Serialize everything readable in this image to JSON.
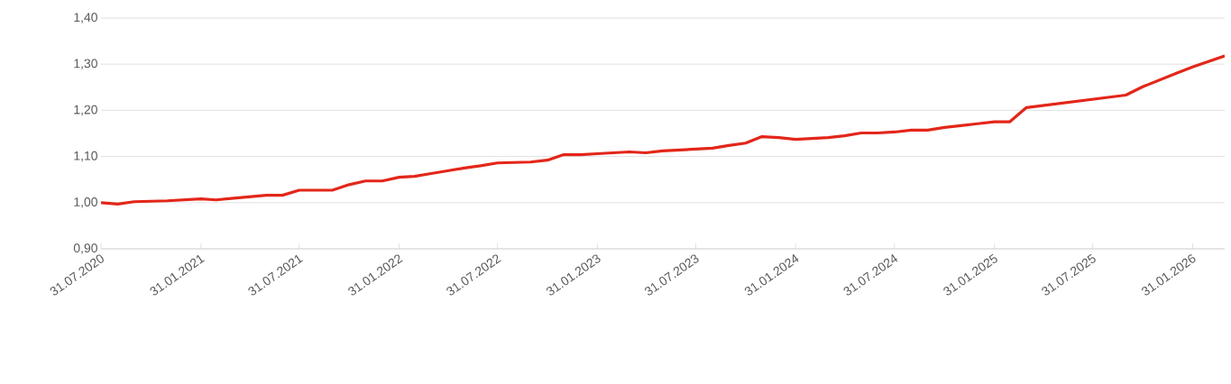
{
  "chart_data": {
    "type": "line",
    "x": [
      "2020-07-31",
      "2020-08-31",
      "2020-09-30",
      "2020-11-30",
      "2021-01-31",
      "2021-02-28",
      "2021-05-31",
      "2021-06-30",
      "2021-07-31",
      "2021-09-30",
      "2021-10-31",
      "2021-11-30",
      "2021-12-31",
      "2022-01-31",
      "2022-02-28",
      "2022-03-31",
      "2022-04-30",
      "2022-05-31",
      "2022-06-30",
      "2022-07-31",
      "2022-09-30",
      "2022-10-31",
      "2022-11-30",
      "2022-12-31",
      "2023-01-31",
      "2023-03-31",
      "2023-04-30",
      "2023-05-31",
      "2023-07-31",
      "2023-08-31",
      "2023-09-30",
      "2023-10-31",
      "2023-11-30",
      "2023-12-31",
      "2024-01-31",
      "2024-03-31",
      "2024-04-30",
      "2024-05-31",
      "2024-06-30",
      "2024-07-31",
      "2024-08-31",
      "2024-09-30",
      "2024-10-31",
      "2024-11-30",
      "2024-12-31",
      "2025-01-31",
      "2025-02-28",
      "2025-03-31",
      "2025-09-30",
      "2025-10-31",
      "2025-12-31",
      "2026-01-31",
      "2026-03-31"
    ],
    "series": [
      {
        "color": "#e32619",
        "values": [
          1.0,
          0.997,
          1.002,
          1.004,
          1.008,
          1.006,
          1.016,
          1.016,
          1.027,
          1.027,
          1.039,
          1.047,
          1.047,
          1.055,
          1.057,
          1.063,
          1.069,
          1.075,
          1.08,
          1.086,
          1.088,
          1.092,
          1.104,
          1.104,
          1.106,
          1.11,
          1.108,
          1.112,
          1.116,
          1.118,
          1.124,
          1.129,
          1.143,
          1.141,
          1.137,
          1.141,
          1.145,
          1.151,
          1.151,
          1.153,
          1.157,
          1.157,
          1.163,
          1.167,
          1.171,
          1.175,
          1.175,
          1.206,
          1.233,
          1.251,
          1.28,
          1.294,
          1.318
        ]
      }
    ],
    "xlim": [
      "2020-07-31",
      "2026-03-31"
    ],
    "xticks": [
      {
        "value": "2020-07-31",
        "label": "31.07.2020"
      },
      {
        "value": "2021-01-31",
        "label": "31.01.2021"
      },
      {
        "value": "2021-07-31",
        "label": "31.07.2021"
      },
      {
        "value": "2022-01-31",
        "label": "31.01.2022"
      },
      {
        "value": "2022-07-31",
        "label": "31.07.2022"
      },
      {
        "value": "2023-01-31",
        "label": "31.01.2023"
      },
      {
        "value": "2023-07-31",
        "label": "31.07.2023"
      },
      {
        "value": "2024-01-31",
        "label": "31.01.2024"
      },
      {
        "value": "2024-07-31",
        "label": "31.07.2024"
      },
      {
        "value": "2025-01-31",
        "label": "31.01.2025"
      },
      {
        "value": "2025-07-31",
        "label": "31.07.2025"
      },
      {
        "value": "2026-01-31",
        "label": "31.01.2026"
      }
    ],
    "ylim": [
      0.9,
      1.4
    ],
    "yticks": [
      {
        "value": 0.9,
        "label": "0,90"
      },
      {
        "value": 1.0,
        "label": "1,00"
      },
      {
        "value": 1.1,
        "label": "1,10"
      },
      {
        "value": 1.2,
        "label": "1,20"
      },
      {
        "value": 1.3,
        "label": "1,30"
      },
      {
        "value": 1.4,
        "label": "1,40"
      }
    ],
    "grid": "y",
    "marker": "none",
    "line_style": "solid"
  }
}
